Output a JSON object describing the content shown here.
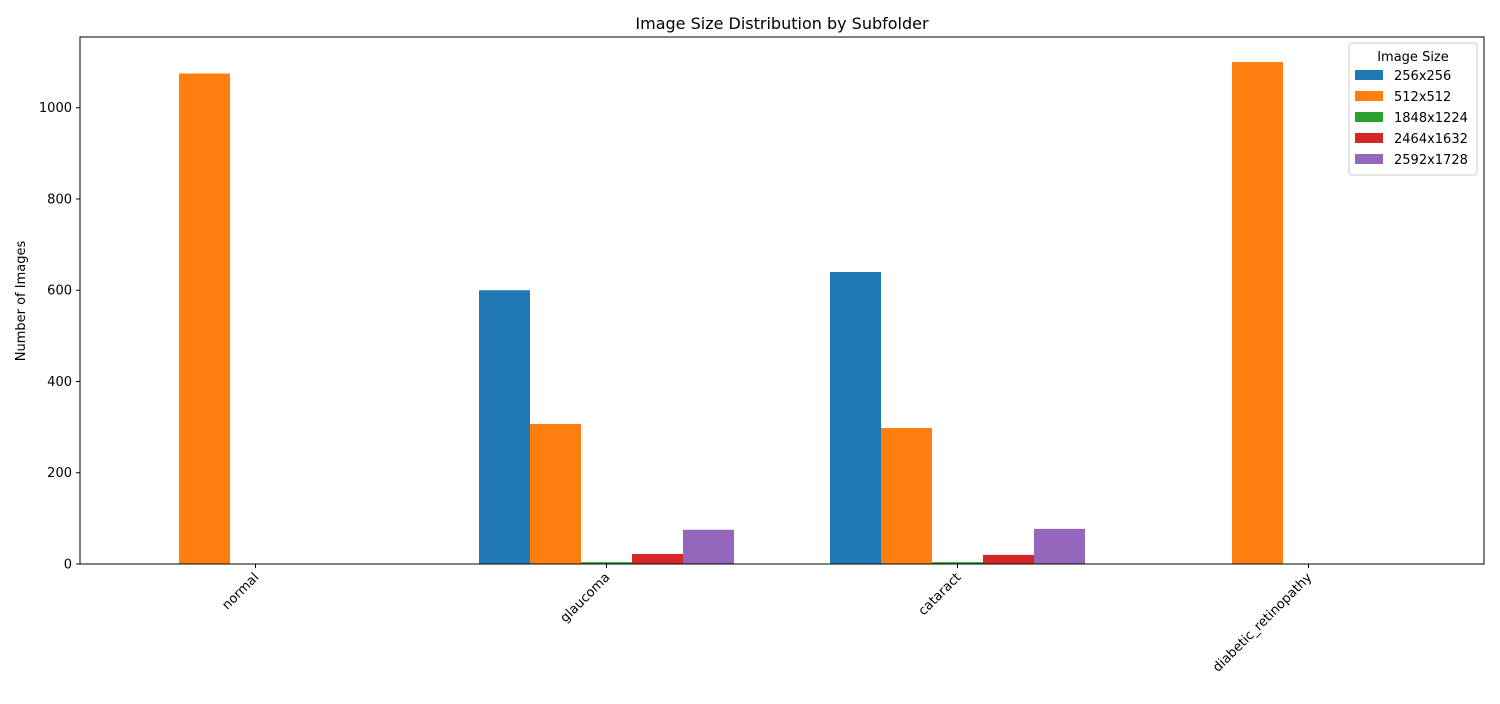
{
  "chart_data": {
    "type": "bar",
    "title": "Image Size Distribution by Subfolder",
    "xlabel": "",
    "ylabel": "Number of Images",
    "categories": [
      "normal",
      "glaucoma",
      "cataract",
      "diabetic_retinopathy"
    ],
    "ylim": [
      0,
      1155
    ],
    "yticks": [
      0,
      200,
      400,
      600,
      800,
      1000
    ],
    "grid": false,
    "legend": {
      "title": "Image Size",
      "placement": "top-right"
    },
    "series": [
      {
        "name": "256x256",
        "color": "#1f77b4",
        "values": [
          0,
          600,
          640,
          0
        ]
      },
      {
        "name": "512x512",
        "color": "#ff7f0e",
        "values": [
          1075,
          307,
          298,
          1100
        ]
      },
      {
        "name": "1848x1224",
        "color": "#2ca02c",
        "values": [
          0,
          4,
          4,
          0
        ]
      },
      {
        "name": "2464x1632",
        "color": "#d62728",
        "values": [
          0,
          22,
          20,
          0
        ]
      },
      {
        "name": "2592x1728",
        "color": "#9467bd",
        "values": [
          0,
          75,
          77,
          0
        ]
      }
    ]
  }
}
